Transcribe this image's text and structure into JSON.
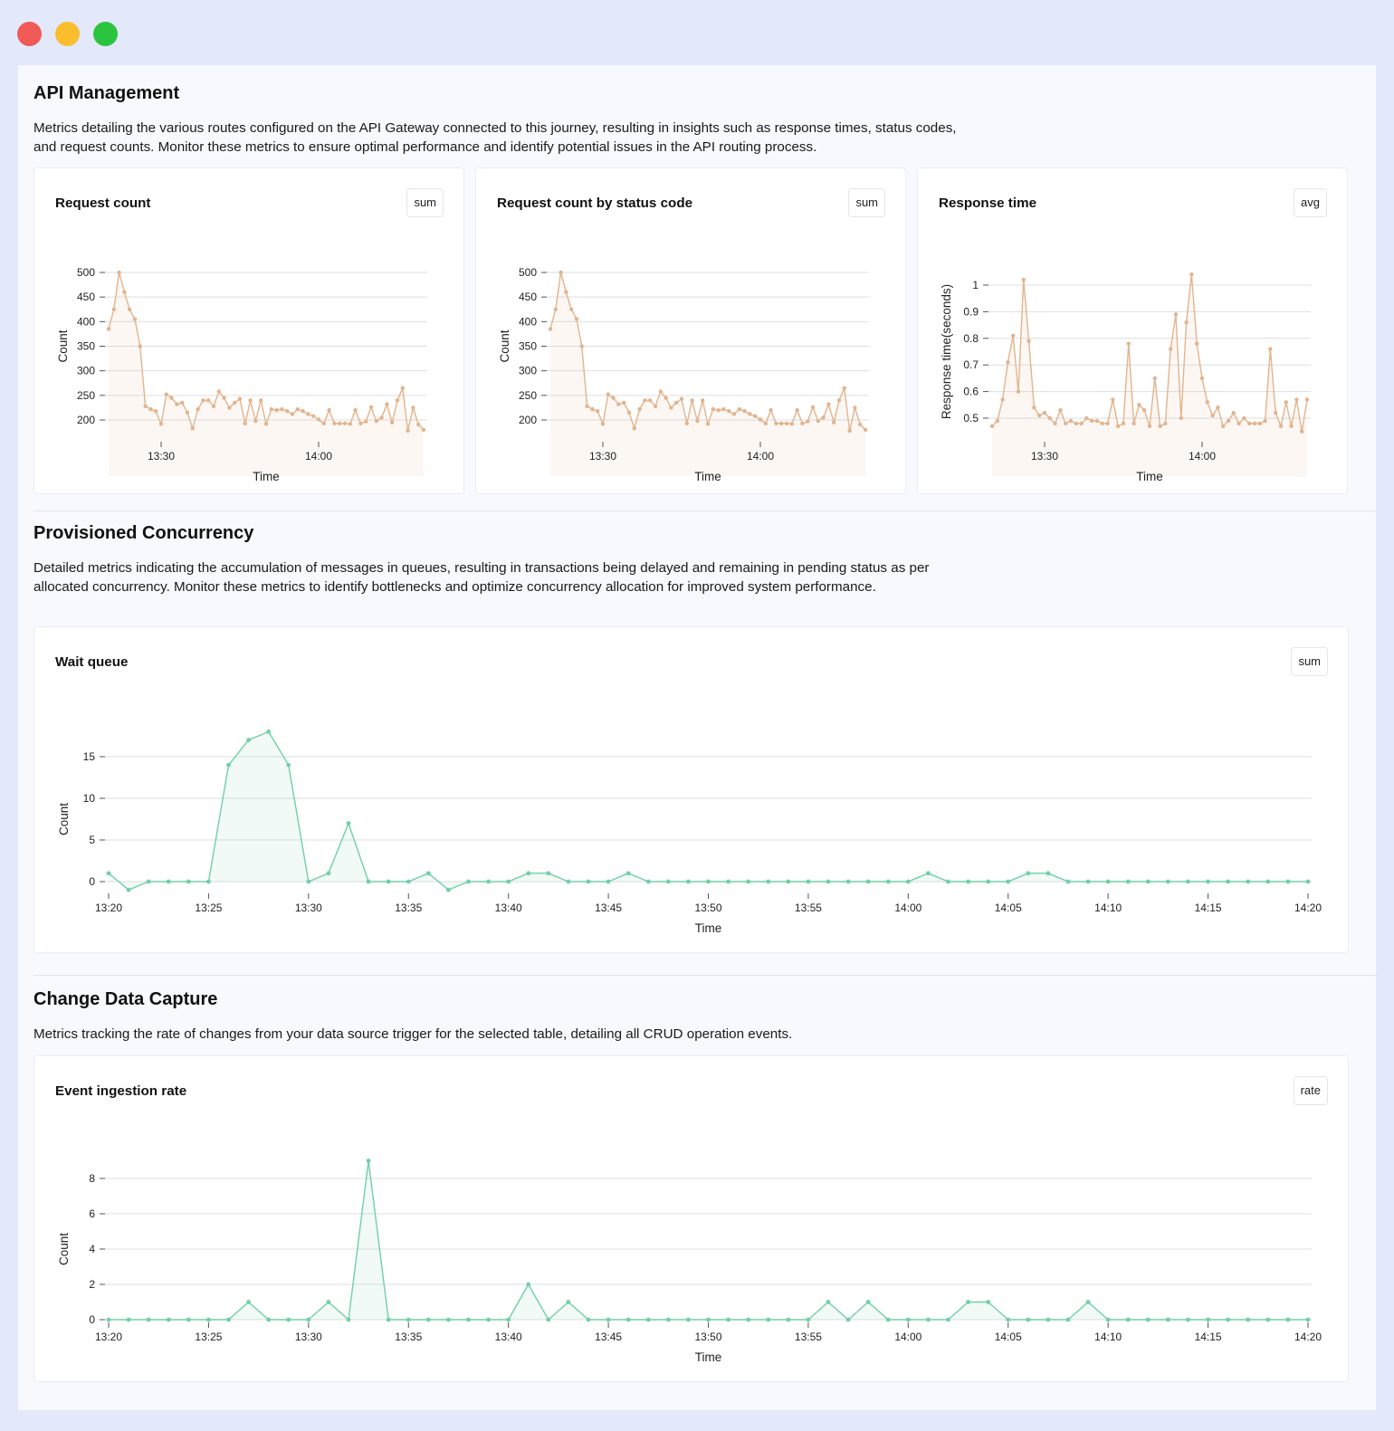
{
  "sections": {
    "api": {
      "title": "API Management",
      "description": "Metrics detailing the various routes configured on the API Gateway connected to this journey, resulting in insights such as response times, status codes, and request counts. Monitor these metrics to ensure optimal performance and identify potential issues in the API routing process."
    },
    "concurrency": {
      "title": "Provisioned Concurrency",
      "description": "Detailed metrics indicating the accumulation of messages in queues, resulting in transactions being delayed and remaining in pending status as per allocated concurrency. Monitor these metrics to identify bottlenecks and optimize concurrency allocation for improved system performance."
    },
    "cdc": {
      "title": "Change Data Capture",
      "description": "Metrics tracking the rate of changes from your data source trigger for the selected table, detailing all CRUD operation events."
    }
  },
  "cards": {
    "request_count": {
      "title": "Request count",
      "aggregation": "sum"
    },
    "status_code": {
      "title": "Request count by status code",
      "aggregation": "sum"
    },
    "response_time": {
      "title": "Response time",
      "aggregation": "avg"
    },
    "wait_queue": {
      "title": "Wait queue",
      "aggregation": "sum"
    },
    "event_rate": {
      "title": "Event ingestion rate",
      "aggregation": "rate"
    }
  },
  "colors": {
    "api_series": "#e2b48e",
    "concurrency_series": "#72cfa8",
    "grid": "#dcdfe5"
  },
  "chart_data": [
    {
      "id": "request_count",
      "type": "area",
      "xlabel": "Time",
      "ylabel": "Count",
      "x_start": "13:20",
      "x_end": "14:20",
      "x_ticks": [
        "13:30",
        "14:00"
      ],
      "y_ticks": [
        200,
        250,
        300,
        350,
        400,
        450,
        500
      ],
      "ylim": [
        200,
        500
      ],
      "values": [
        385,
        425,
        500,
        460,
        425,
        405,
        350,
        228,
        222,
        218,
        192,
        252,
        245,
        232,
        235,
        215,
        183,
        222,
        240,
        240,
        228,
        258,
        245,
        225,
        235,
        243,
        193,
        240,
        198,
        240,
        192,
        222,
        220,
        222,
        218,
        212,
        222,
        218,
        212,
        208,
        201,
        193,
        220,
        193,
        193,
        193,
        192,
        220,
        193,
        197,
        226,
        198,
        205,
        232,
        195,
        240,
        265,
        178,
        225,
        191,
        180
      ]
    },
    {
      "id": "status_code",
      "type": "area",
      "xlabel": "Time",
      "ylabel": "Count",
      "x_start": "13:20",
      "x_end": "14:20",
      "x_ticks": [
        "13:30",
        "14:00"
      ],
      "y_ticks": [
        200,
        250,
        300,
        350,
        400,
        450,
        500
      ],
      "ylim": [
        200,
        500
      ],
      "values": [
        385,
        425,
        500,
        460,
        425,
        405,
        350,
        228,
        222,
        218,
        192,
        252,
        245,
        232,
        235,
        215,
        183,
        222,
        240,
        240,
        228,
        258,
        245,
        225,
        235,
        243,
        193,
        240,
        198,
        240,
        192,
        222,
        220,
        222,
        218,
        212,
        222,
        218,
        212,
        208,
        201,
        193,
        220,
        193,
        193,
        193,
        192,
        220,
        193,
        197,
        226,
        198,
        205,
        232,
        195,
        240,
        265,
        178,
        225,
        191,
        180
      ]
    },
    {
      "id": "response_time",
      "type": "area",
      "xlabel": "Time",
      "ylabel": "Response time(seconds)",
      "x_start": "13:20",
      "x_end": "14:20",
      "x_ticks": [
        "13:30",
        "14:00"
      ],
      "y_ticks": [
        0.5,
        0.6,
        0.7,
        0.8,
        0.9,
        1
      ],
      "y_tick_labels": [
        "0.5",
        "0.6",
        "0.7",
        "0.8",
        "0.9",
        "1"
      ],
      "ylim": [
        0.5,
        1.0
      ],
      "values": [
        0.47,
        0.49,
        0.57,
        0.71,
        0.81,
        0.6,
        1.02,
        0.79,
        0.54,
        0.51,
        0.52,
        0.5,
        0.48,
        0.53,
        0.48,
        0.49,
        0.48,
        0.48,
        0.5,
        0.49,
        0.49,
        0.48,
        0.48,
        0.57,
        0.47,
        0.48,
        0.78,
        0.48,
        0.55,
        0.53,
        0.47,
        0.65,
        0.47,
        0.48,
        0.76,
        0.89,
        0.5,
        0.86,
        1.04,
        0.78,
        0.65,
        0.56,
        0.51,
        0.54,
        0.47,
        0.49,
        0.52,
        0.48,
        0.5,
        0.48,
        0.48,
        0.48,
        0.49,
        0.76,
        0.52,
        0.47,
        0.56,
        0.47,
        0.57,
        0.45,
        0.57
      ]
    },
    {
      "id": "wait_queue",
      "type": "area",
      "xlabel": "Time",
      "ylabel": "Count",
      "x_start": "13:20",
      "x_end": "14:20",
      "x_ticks": [
        "13:20",
        "13:25",
        "13:30",
        "13:35",
        "13:40",
        "13:45",
        "13:50",
        "13:55",
        "14:00",
        "14:05",
        "14:10",
        "14:15",
        "14:20"
      ],
      "y_ticks": [
        0,
        5,
        10,
        15
      ],
      "ylim": [
        0,
        15
      ],
      "values": [
        1,
        -1,
        0,
        0,
        0,
        0,
        14,
        17,
        18,
        14,
        0,
        1,
        7,
        0,
        0,
        0,
        1,
        -1,
        0,
        0,
        0,
        1,
        1,
        0,
        0,
        0,
        1,
        0,
        0,
        0,
        0,
        0,
        0,
        0,
        0,
        0,
        0,
        0,
        0,
        0,
        0,
        1,
        0,
        0,
        0,
        0,
        1,
        1,
        0,
        0,
        0,
        0,
        0,
        0,
        0,
        0,
        0,
        0,
        0,
        0,
        0
      ]
    },
    {
      "id": "event_rate",
      "type": "area",
      "xlabel": "Time",
      "ylabel": "Count",
      "x_start": "13:20",
      "x_end": "14:20",
      "x_ticks": [
        "13:20",
        "13:25",
        "13:30",
        "13:35",
        "13:40",
        "13:45",
        "13:50",
        "13:55",
        "14:00",
        "14:05",
        "14:10",
        "14:15",
        "14:20"
      ],
      "y_ticks": [
        0,
        2,
        4,
        6,
        8
      ],
      "ylim": [
        0,
        8
      ],
      "values": [
        0,
        0,
        0,
        0,
        0,
        0,
        0,
        1,
        0,
        0,
        0,
        1,
        0,
        9,
        0,
        0,
        0,
        0,
        0,
        0,
        0,
        2,
        0,
        1,
        0,
        0,
        0,
        0,
        0,
        0,
        0,
        0,
        0,
        0,
        0,
        0,
        1,
        0,
        1,
        0,
        0,
        0,
        0,
        1,
        1,
        0,
        0,
        0,
        0,
        1,
        0,
        0,
        0,
        0,
        0,
        0,
        0,
        0,
        0,
        0,
        0
      ]
    }
  ]
}
